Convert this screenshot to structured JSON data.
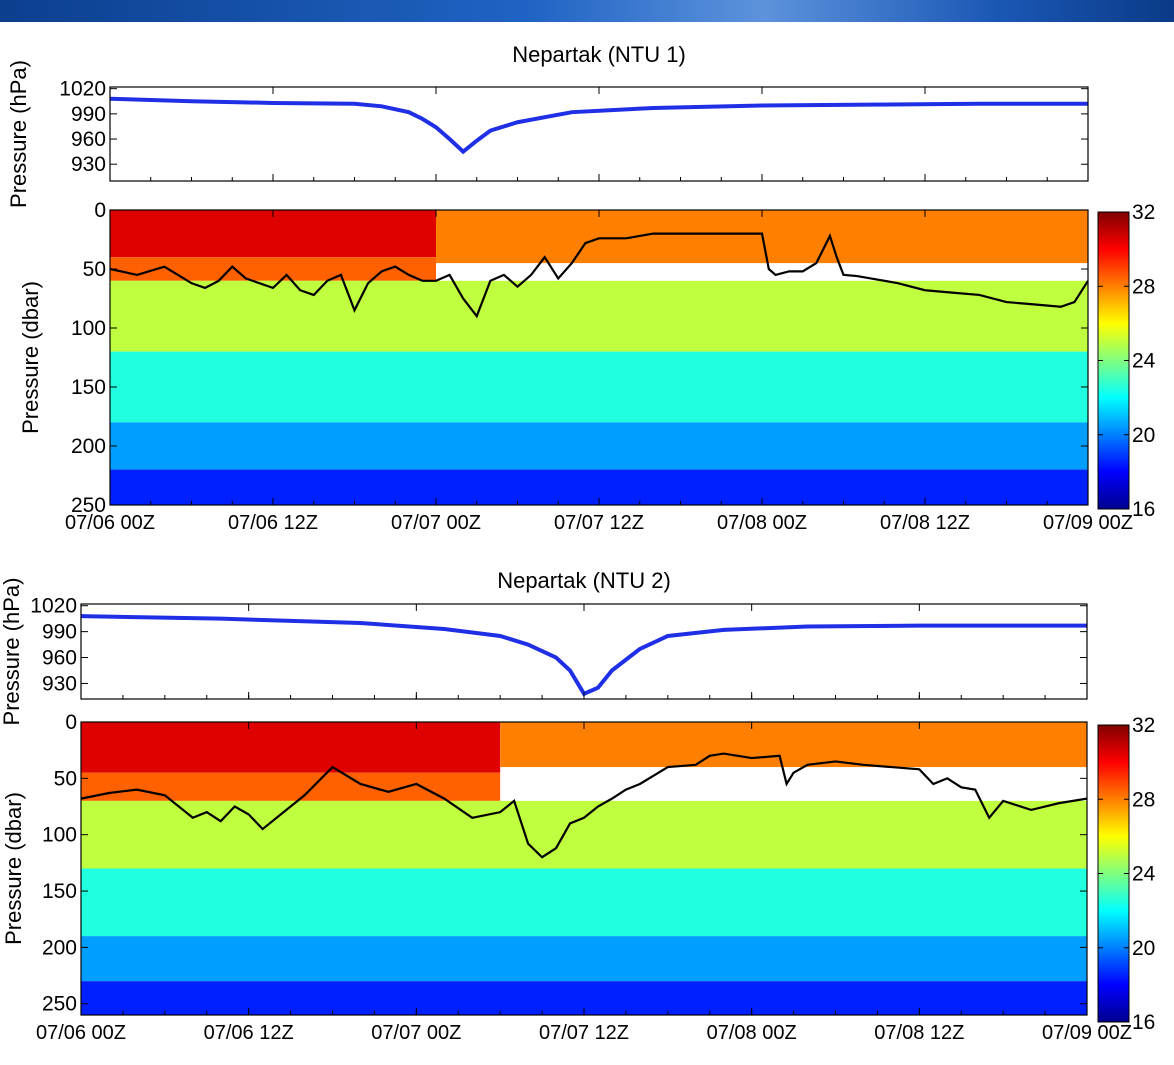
{
  "banner_color": "#1f63c4",
  "chart_data": [
    {
      "type": "line",
      "title": "Nepartak (NTU 1)",
      "ylabel": "Pressure (hPa)",
      "x_tick_labels": [
        "07/06 00Z",
        "07/06 12Z",
        "07/07 00Z",
        "07/07 12Z",
        "07/08 00Z",
        "07/08 12Z",
        "07/09 00Z"
      ],
      "xlim_hours": [
        0,
        72
      ],
      "yticks": [
        930,
        960,
        990,
        1020
      ],
      "ylim": [
        910,
        1022
      ],
      "series": [
        {
          "color": "#1f2fe6",
          "x_hours": [
            0,
            6,
            12,
            18,
            20,
            22,
            23,
            24,
            25,
            26,
            27,
            28,
            30,
            34,
            40,
            48,
            56,
            64,
            72
          ],
          "values": [
            1008,
            1005,
            1003,
            1002,
            999,
            992,
            984,
            974,
            960,
            945,
            958,
            970,
            980,
            992,
            997,
            1000,
            1001,
            1002,
            1002
          ]
        }
      ]
    },
    {
      "type": "heatmap",
      "ylabel": "Pressure (dbar)",
      "x_tick_labels": [
        "07/06 00Z",
        "07/06 12Z",
        "07/07 00Z",
        "07/07 12Z",
        "07/08 00Z",
        "07/08 12Z",
        "07/09 00Z"
      ],
      "xlim_hours": [
        0,
        72
      ],
      "yticks": [
        0,
        50,
        100,
        150,
        200,
        250
      ],
      "ylim": [
        0,
        250
      ],
      "colorbar": {
        "ticks": [
          16,
          20,
          24,
          28,
          32
        ],
        "range": [
          16,
          32
        ],
        "colormap": "jet"
      },
      "isotherm_line": {
        "color": "#000000",
        "x_hours": [
          0,
          2,
          4,
          6,
          7,
          8,
          9,
          10,
          12,
          13,
          14,
          15,
          16,
          17,
          18,
          19,
          20,
          21,
          22,
          23,
          24,
          25,
          26,
          27,
          28,
          29,
          30,
          31,
          32,
          33,
          34,
          35,
          36,
          38,
          40,
          42,
          44,
          46,
          48,
          48.5,
          49,
          50,
          51,
          52,
          53,
          53.5,
          54,
          55,
          56,
          58,
          60,
          62,
          64,
          66,
          68,
          70,
          71,
          72
        ],
        "depth_dbar": [
          50,
          55,
          48,
          62,
          66,
          60,
          48,
          58,
          66,
          55,
          68,
          72,
          60,
          55,
          85,
          62,
          52,
          48,
          55,
          60,
          60,
          55,
          75,
          90,
          60,
          55,
          65,
          55,
          40,
          58,
          45,
          28,
          24,
          24,
          20,
          20,
          20,
          20,
          20,
          50,
          55,
          52,
          52,
          45,
          22,
          40,
          55,
          56,
          58,
          62,
          68,
          70,
          72,
          78,
          80,
          82,
          78,
          60
        ]
      },
      "regions": [
        {
          "x_hours": [
            0,
            24
          ],
          "depth_dbar": [
            0,
            40
          ],
          "temp": 30.5
        },
        {
          "x_hours": [
            0,
            24
          ],
          "depth_dbar": [
            40,
            60
          ],
          "temp": 28.5
        },
        {
          "x_hours": [
            24,
            72
          ],
          "depth_dbar": [
            0,
            45
          ],
          "temp": 28
        },
        {
          "x_hours": [
            0,
            72
          ],
          "depth_dbar": [
            60,
            120
          ],
          "temp": 25
        },
        {
          "x_hours": [
            0,
            72
          ],
          "depth_dbar": [
            120,
            180
          ],
          "temp": 22.5
        },
        {
          "x_hours": [
            0,
            72
          ],
          "depth_dbar": [
            180,
            220
          ],
          "temp": 20.5
        },
        {
          "x_hours": [
            0,
            72
          ],
          "depth_dbar": [
            220,
            250
          ],
          "temp": 18.5
        }
      ]
    },
    {
      "type": "line",
      "title": "Nepartak (NTU 2)",
      "ylabel": "Pressure (hPa)",
      "x_tick_labels": [
        "07/06 00Z",
        "07/06 12Z",
        "07/07 00Z",
        "07/07 12Z",
        "07/08 00Z",
        "07/08 12Z",
        "07/09 00Z"
      ],
      "xlim_hours": [
        0,
        72
      ],
      "yticks": [
        930,
        960,
        990,
        1020
      ],
      "ylim": [
        912,
        1022
      ],
      "series": [
        {
          "color": "#1f2fe6",
          "x_hours": [
            0,
            10,
            20,
            26,
            30,
            32,
            34,
            35,
            36,
            37,
            38,
            40,
            42,
            46,
            52,
            60,
            72
          ],
          "values": [
            1008,
            1005,
            1000,
            993,
            985,
            975,
            960,
            945,
            918,
            925,
            945,
            970,
            985,
            992,
            996,
            997,
            997
          ]
        }
      ]
    },
    {
      "type": "heatmap",
      "ylabel": "Pressure (dbar)",
      "x_tick_labels": [
        "07/06 00Z",
        "07/06 12Z",
        "07/07 00Z",
        "07/07 12Z",
        "07/08 00Z",
        "07/08 12Z",
        "07/09 00Z"
      ],
      "xlim_hours": [
        0,
        72
      ],
      "yticks": [
        0,
        50,
        100,
        150,
        200,
        250
      ],
      "ylim": [
        0,
        260
      ],
      "colorbar": {
        "ticks": [
          16,
          20,
          24,
          28,
          32
        ],
        "range": [
          16,
          32
        ],
        "colormap": "jet"
      },
      "isotherm_line": {
        "color": "#000000",
        "x_hours": [
          0,
          2,
          4,
          6,
          8,
          9,
          10,
          11,
          12,
          13,
          14,
          15,
          16,
          18,
          20,
          22,
          24,
          26,
          28,
          30,
          31,
          32,
          33,
          34,
          35,
          36,
          37,
          38,
          39,
          40,
          42,
          44,
          45,
          46,
          48,
          50,
          50.5,
          51,
          52,
          54,
          56,
          58,
          60,
          61,
          62,
          63,
          64,
          65,
          66,
          68,
          70,
          72
        ],
        "depth_dbar": [
          68,
          63,
          60,
          65,
          85,
          80,
          88,
          75,
          82,
          95,
          85,
          75,
          65,
          40,
          55,
          62,
          55,
          68,
          85,
          80,
          70,
          108,
          120,
          112,
          90,
          85,
          75,
          68,
          60,
          55,
          40,
          38,
          30,
          28,
          32,
          30,
          55,
          45,
          38,
          35,
          38,
          40,
          42,
          55,
          50,
          58,
          60,
          85,
          70,
          78,
          72,
          68
        ]
      },
      "regions": [
        {
          "x_hours": [
            0,
            30
          ],
          "depth_dbar": [
            0,
            45
          ],
          "temp": 30.5
        },
        {
          "x_hours": [
            0,
            30
          ],
          "depth_dbar": [
            45,
            70
          ],
          "temp": 28.5
        },
        {
          "x_hours": [
            30,
            72
          ],
          "depth_dbar": [
            0,
            40
          ],
          "temp": 28
        },
        {
          "x_hours": [
            0,
            72
          ],
          "depth_dbar": [
            70,
            130
          ],
          "temp": 25
        },
        {
          "x_hours": [
            0,
            72
          ],
          "depth_dbar": [
            130,
            190
          ],
          "temp": 22.5
        },
        {
          "x_hours": [
            0,
            72
          ],
          "depth_dbar": [
            190,
            230
          ],
          "temp": 20.5
        },
        {
          "x_hours": [
            0,
            72
          ],
          "depth_dbar": [
            230,
            260
          ],
          "temp": 18.5
        }
      ]
    }
  ]
}
